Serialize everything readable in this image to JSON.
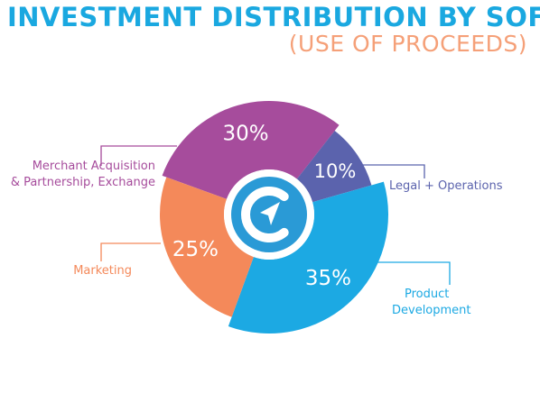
{
  "header": {
    "title": "INVESTMENT DISTRIBUTION BY SOFTCAP",
    "subtitle": "(USE OF PROCEEDS)"
  },
  "colors": {
    "title": "#1aa8e0",
    "subtitle": "#f5a078",
    "center_ring": "#2a9ad6",
    "center_fill": "#ffffff",
    "leader": "#999999"
  },
  "logo": {
    "icon": "softcap-logo-icon"
  },
  "chart_data": {
    "type": "pie",
    "style": "donut",
    "title": "INVESTMENT DISTRIBUTION BY SOFTCAP",
    "subtitle": "(USE OF PROCEEDS)",
    "slices": [
      {
        "label": "Merchant Acquisition & Partnership, Exchange",
        "label_lines": [
          "Merchant Acquisition",
          "& Partnership, Exchange"
        ],
        "value": 30,
        "display": "30%",
        "color": "#a64c9c"
      },
      {
        "label": "Legal + Operations",
        "label_lines": [
          "Legal + Operations"
        ],
        "value": 10,
        "display": "10%",
        "color": "#5b63ad"
      },
      {
        "label": "Product Development",
        "label_lines": [
          "Product",
          "Development"
        ],
        "value": 35,
        "display": "35%",
        "color": "#1ca9e3"
      },
      {
        "label": "Marketing",
        "label_lines": [
          "Marketing"
        ],
        "value": 25,
        "display": "25%",
        "color": "#f4895a"
      }
    ]
  }
}
